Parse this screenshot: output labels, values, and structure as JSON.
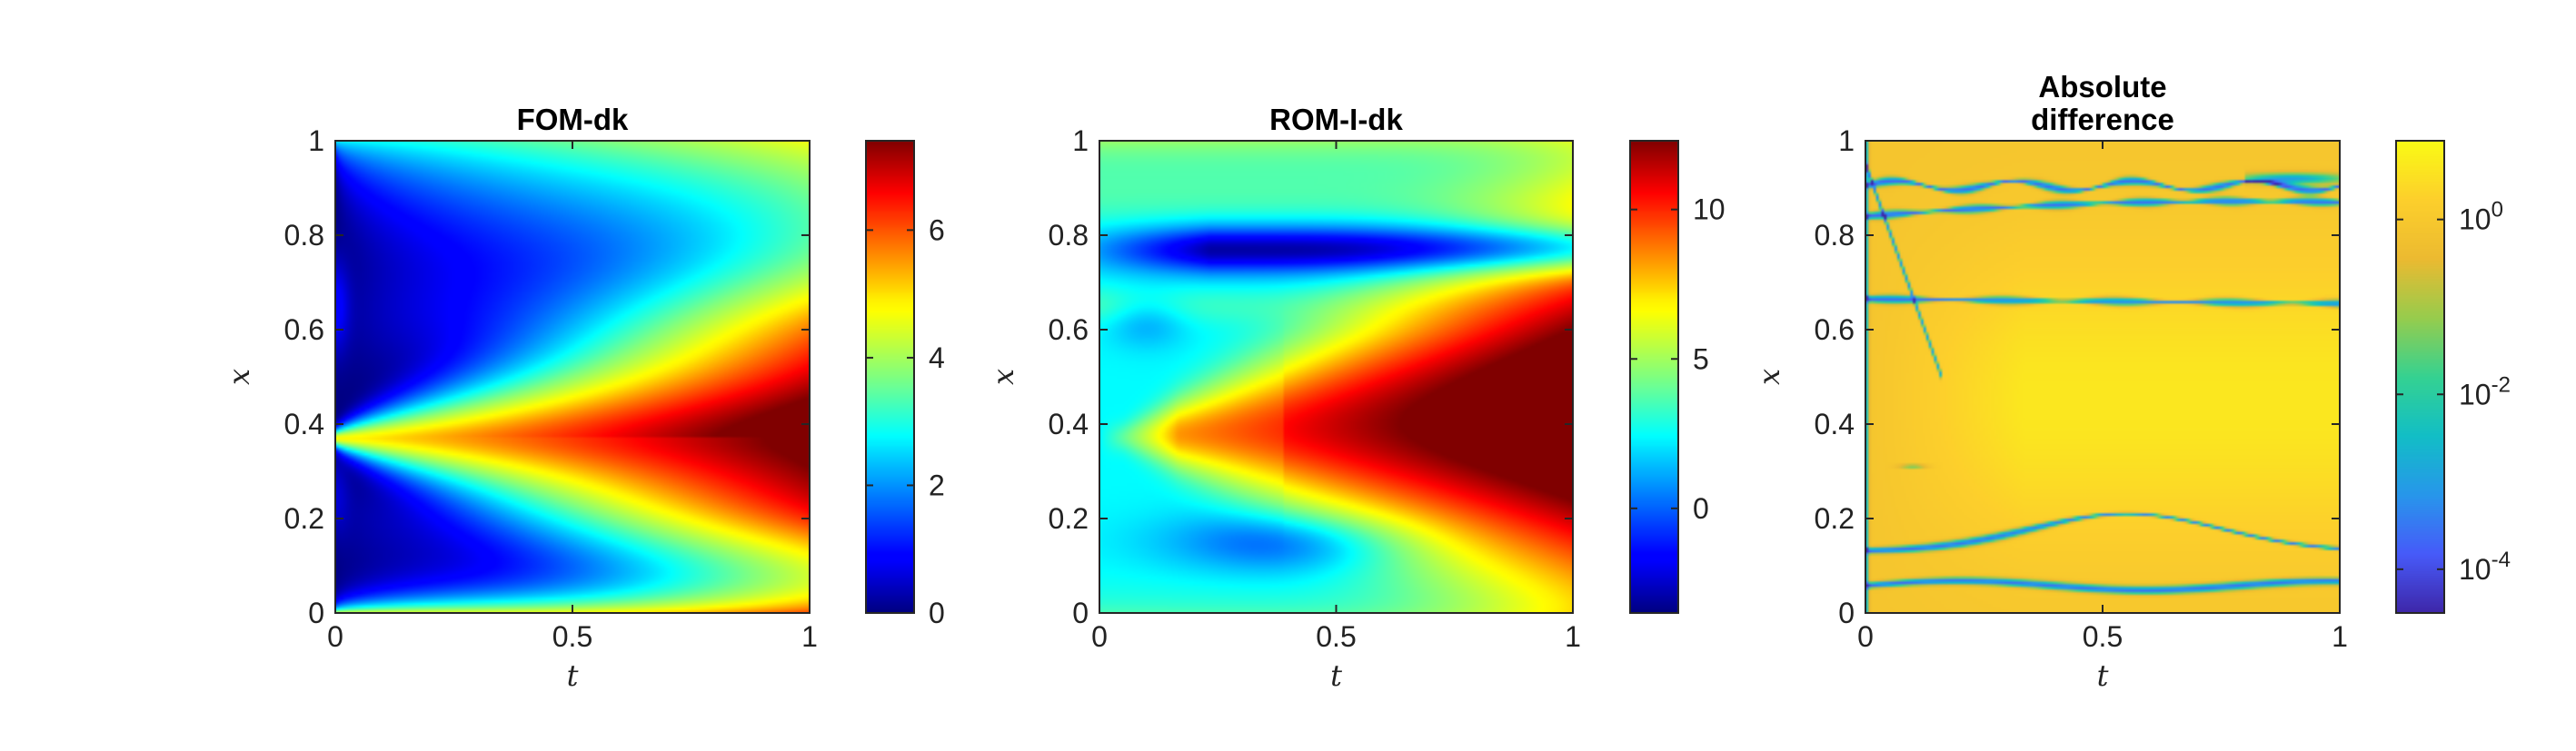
{
  "chart_data": [
    {
      "type": "heatmap",
      "title": "FOM-dk",
      "xlabel": "t",
      "ylabel": "x",
      "xlim": [
        0,
        1
      ],
      "ylim": [
        0,
        1
      ],
      "xticks": [
        {
          "value": 0,
          "label": "0"
        },
        {
          "value": 0.5,
          "label": "0.5"
        },
        {
          "value": 1,
          "label": "1"
        }
      ],
      "yticks": [
        {
          "value": 0,
          "label": "0"
        },
        {
          "value": 0.2,
          "label": "0.2"
        },
        {
          "value": 0.4,
          "label": "0.4"
        },
        {
          "value": 0.6,
          "label": "0.6"
        },
        {
          "value": 0.8,
          "label": "0.8"
        },
        {
          "value": 1,
          "label": "1"
        }
      ],
      "colormap": "jet",
      "colorbar": {
        "range": [
          0,
          7.4
        ],
        "scale": "linear",
        "ticks": [
          {
            "value": 0,
            "label": "0"
          },
          {
            "value": 2,
            "label": "2"
          },
          {
            "value": 4,
            "label": "4"
          },
          {
            "value": 6,
            "label": "6"
          }
        ]
      },
      "field": "fom"
    },
    {
      "type": "heatmap",
      "title": "ROM-I-dk",
      "xlabel": "t",
      "ylabel": "x",
      "xlim": [
        0,
        1
      ],
      "ylim": [
        0,
        1
      ],
      "xticks": [
        {
          "value": 0,
          "label": "0"
        },
        {
          "value": 0.5,
          "label": "0.5"
        },
        {
          "value": 1,
          "label": "1"
        }
      ],
      "yticks": [
        {
          "value": 0,
          "label": "0"
        },
        {
          "value": 0.2,
          "label": "0.2"
        },
        {
          "value": 0.4,
          "label": "0.4"
        },
        {
          "value": 0.6,
          "label": "0.6"
        },
        {
          "value": 0.8,
          "label": "0.8"
        },
        {
          "value": 1,
          "label": "1"
        }
      ],
      "colormap": "jet",
      "colorbar": {
        "range": [
          -3.5,
          12.3
        ],
        "scale": "linear",
        "ticks": [
          {
            "value": 0,
            "label": "0"
          },
          {
            "value": 5,
            "label": "5"
          },
          {
            "value": 10,
            "label": "10"
          }
        ]
      },
      "field": "rom"
    },
    {
      "type": "heatmap",
      "title": [
        "Absolute",
        "difference"
      ],
      "xlabel": "t",
      "ylabel": "x",
      "xlim": [
        0,
        1
      ],
      "ylim": [
        0,
        1
      ],
      "xticks": [
        {
          "value": 0,
          "label": "0"
        },
        {
          "value": 0.5,
          "label": "0.5"
        },
        {
          "value": 1,
          "label": "1"
        }
      ],
      "yticks": [
        {
          "value": 0,
          "label": "0"
        },
        {
          "value": 0.2,
          "label": "0.2"
        },
        {
          "value": 0.4,
          "label": "0.4"
        },
        {
          "value": 0.6,
          "label": "0.6"
        },
        {
          "value": 0.8,
          "label": "0.8"
        },
        {
          "value": 1,
          "label": "1"
        }
      ],
      "colormap": "parula",
      "colorbar": {
        "range": [
          -4.5,
          0.9
        ],
        "scale": "log10",
        "ticks": [
          {
            "value": 0,
            "label": "10",
            "exp": "0"
          },
          {
            "value": -2,
            "label": "10",
            "exp": "-2"
          },
          {
            "value": -4,
            "label": "10",
            "exp": "-4"
          }
        ]
      },
      "field": "diff"
    }
  ]
}
